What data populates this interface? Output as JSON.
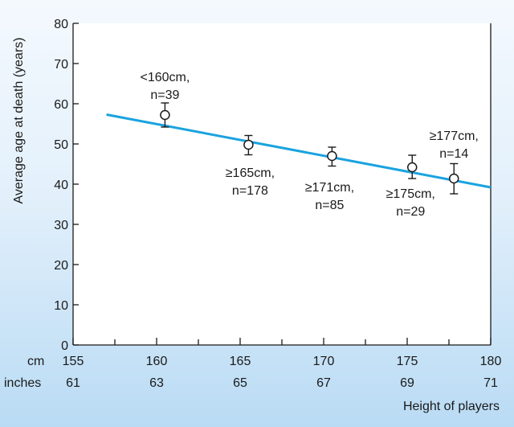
{
  "chart_data": {
    "type": "scatter",
    "ylabel": "Average age at death (years)",
    "xlabel": "Height of players",
    "xlim": [
      155,
      180
    ],
    "ylim": [
      0,
      80
    ],
    "y_ticks": [
      0,
      10,
      20,
      30,
      40,
      50,
      60,
      70,
      80
    ],
    "x_row_labels": [
      "cm",
      "inches"
    ],
    "x_ticks_cm": [
      155,
      160,
      165,
      170,
      175,
      180
    ],
    "x_ticks_inches": [
      61,
      63,
      65,
      67,
      69,
      71
    ],
    "grid": false,
    "points": [
      {
        "x": 160.5,
        "y": 57.2,
        "err_low": 54.2,
        "err_high": 60.2,
        "label": "<160cm,",
        "n": "n=39"
      },
      {
        "x": 165.5,
        "y": 49.8,
        "err_low": 47.3,
        "err_high": 52.1,
        "label": "≥165cm,",
        "n": "n=178"
      },
      {
        "x": 170.5,
        "y": 47.0,
        "err_low": 44.5,
        "err_high": 49.2,
        "label": "≥171cm,",
        "n": "n=85"
      },
      {
        "x": 175.3,
        "y": 44.2,
        "err_low": 41.4,
        "err_high": 47.2,
        "label": "≥175cm,",
        "n": "n=29"
      },
      {
        "x": 177.8,
        "y": 41.4,
        "err_low": 37.6,
        "err_high": 45.1,
        "label": "≥177cm,",
        "n": "n=14"
      }
    ],
    "trend_line": {
      "x": [
        157,
        180
      ],
      "y": [
        57.3,
        39.2
      ]
    },
    "colors": {
      "trend": "#1aa3df",
      "axis": "#1a1a1a",
      "plot_bg": "#ffffff"
    }
  }
}
